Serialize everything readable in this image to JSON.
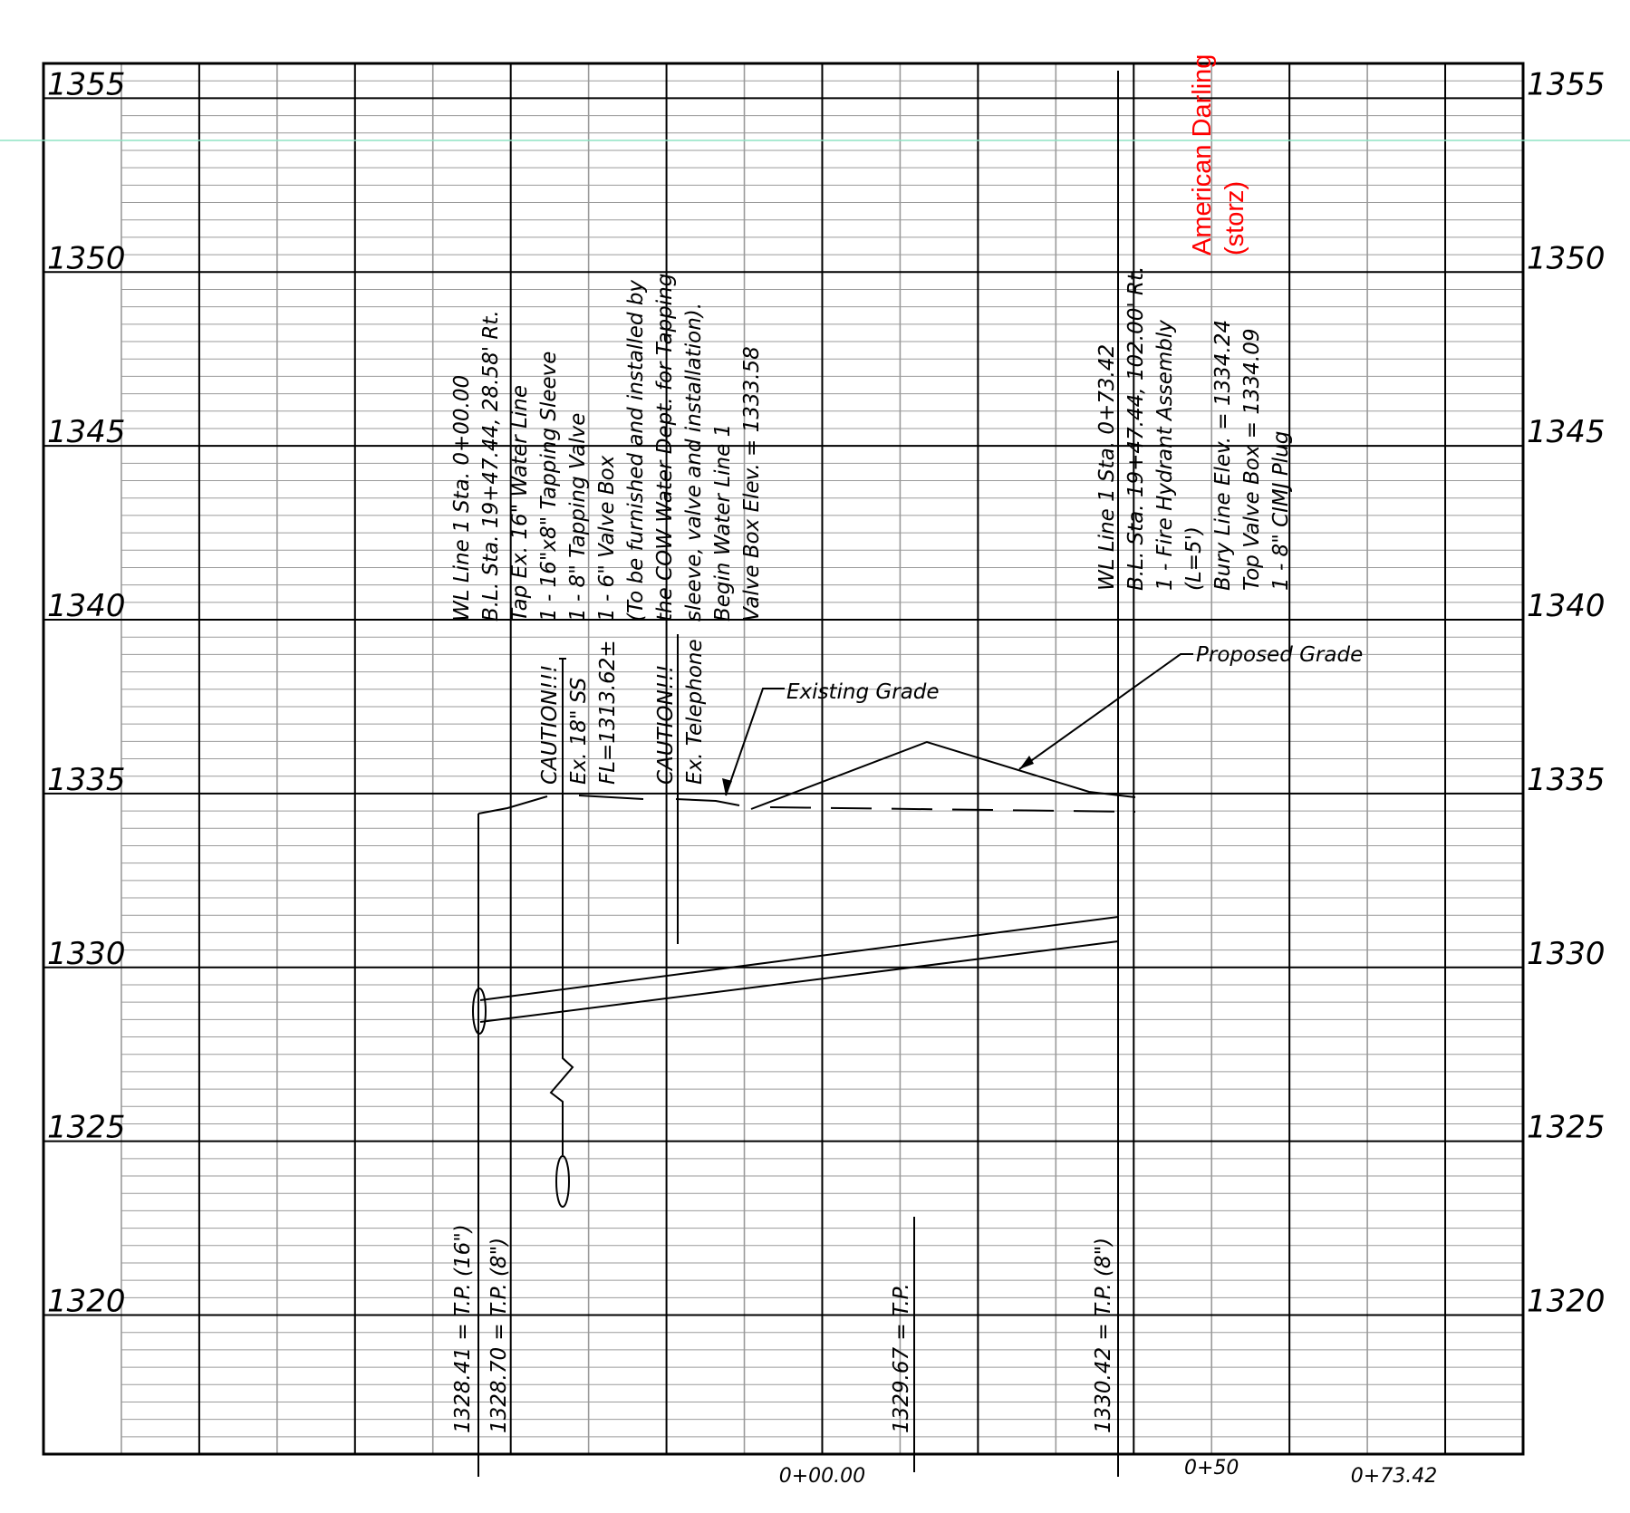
{
  "profile": {
    "elevation_range": [
      1316,
      1356
    ],
    "major_elevation_interval": 5,
    "minor_elevation_interval": 0.5,
    "station_range_ft": [
      -100,
      90
    ],
    "major_station_interval_ft": 20,
    "elevation_labels_left": [
      "1355",
      "1350",
      "1345",
      "1340",
      "1335",
      "1330",
      "1325",
      "1320"
    ],
    "elevation_labels_right": [
      "1355",
      "1350",
      "1345",
      "1340",
      "1335",
      "1330",
      "1325",
      "1320"
    ],
    "station_labels": [
      {
        "sta": 0,
        "label": "0+00.00"
      },
      {
        "sta": 50,
        "label": "0+50"
      },
      {
        "sta": 73.42,
        "label": "0+73.42"
      }
    ]
  },
  "callouts": {
    "begin_line": [
      "WL Line 1 Sta. 0+00.00",
      "B.L. Sta. 19+47.44, 28.58' Rt.",
      "Tap Ex. 16\" Water Line",
      "1 - 16\"x8\" Tapping Sleeve",
      "1 - 8\" Tapping Valve",
      "1 - 6\" Valve Box",
      "(To be furnished and installed by",
      "the COW Water Dept. for Tapping",
      "sleeve, valve and installation).",
      "Begin Water Line 1",
      "Valve Box Elev. = 1333.58"
    ],
    "end_line": [
      "WL Line 1 Sta. 0+73.42",
      "B.L. Sta. 19+47.44, 102.00' Rt.",
      "1 - Fire Hydrant Assembly",
      "(L=5')",
      "Bury Line Elev. = 1334.24",
      "Top Valve Box = 1334.09",
      "1 - 8\" CIMJ Plug"
    ],
    "hydrant_note": [
      "American Darling",
      "(storz)"
    ],
    "sewer_caution": [
      "CAUTION!!!",
      "Ex. 18\" SS",
      "FL=1313.62±"
    ],
    "telephone_caution": [
      "CAUTION!!!",
      "Ex. Telephone"
    ],
    "existing_grade_label": "Existing Grade",
    "proposed_grade_label": "Proposed Grade",
    "tp_labels": [
      "1328.41 = T.P. (16\")",
      "1328.70 = T.P. (8\")",
      "1329.67 = T.P.",
      "1330.42 = T.P. (8\")"
    ]
  },
  "colors": {
    "linework": "#000000",
    "minor_grid": "#9a9a9a",
    "annotation_red": "#ff0000",
    "snap_line": "#8fe3c4"
  }
}
